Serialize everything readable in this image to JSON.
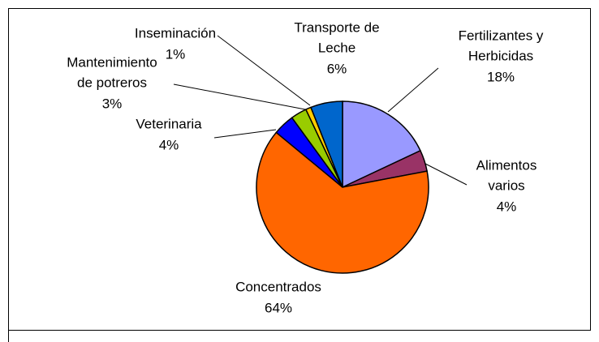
{
  "chart_data": {
    "type": "pie",
    "categories": [
      [
        "Fertilizantes y",
        "Herbicidas"
      ],
      [
        "Alimentos",
        "varios"
      ],
      [
        "Concentrados"
      ],
      [
        "Veterinaria"
      ],
      [
        "Mantenimiento",
        "de potreros"
      ],
      [
        "Inseminación"
      ],
      [
        "Transporte de",
        "Leche"
      ]
    ],
    "values": [
      18,
      4,
      64,
      4,
      3,
      1,
      6
    ],
    "value_labels": [
      "18%",
      "4%",
      "64%",
      "4%",
      "3%",
      "1%",
      "6%"
    ],
    "colors": [
      "#9999ff",
      "#993366",
      "#ff6600",
      "#0000ff",
      "#99cc00",
      "#ffcc00",
      "#0066cc"
    ]
  }
}
